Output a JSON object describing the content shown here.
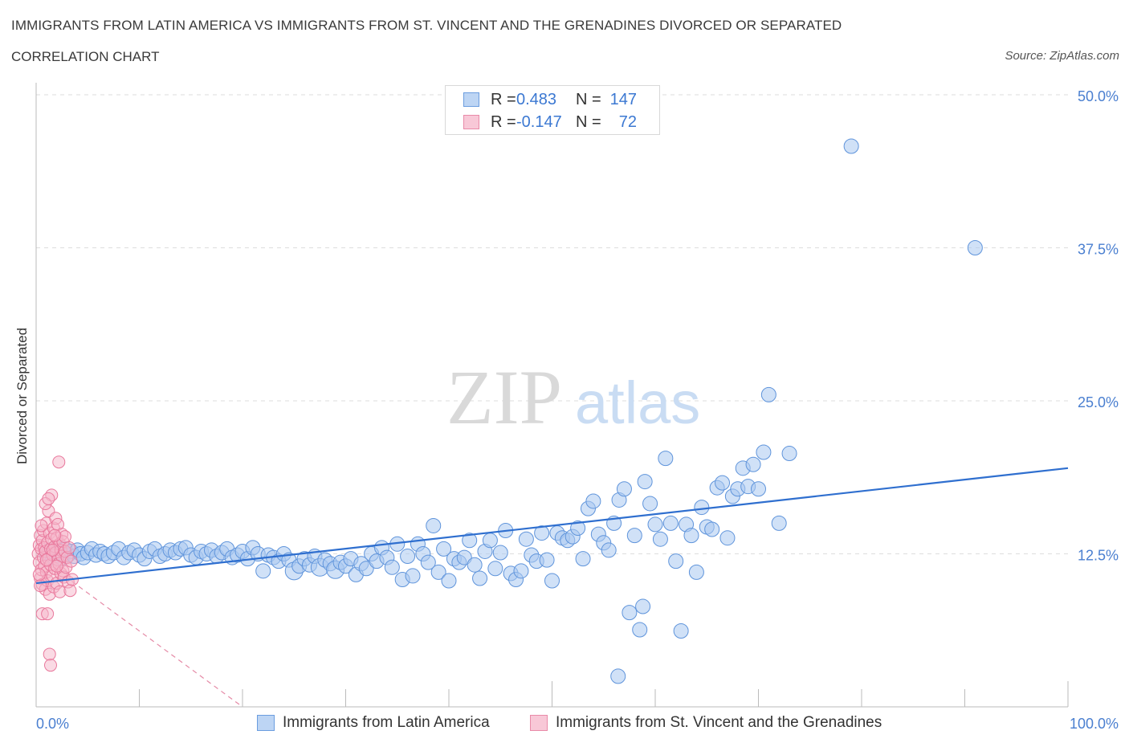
{
  "header": {
    "title": "IMMIGRANTS FROM LATIN AMERICA VS IMMIGRANTS FROM ST. VINCENT AND THE GRENADINES DIVORCED OR SEPARATED",
    "subtitle": "CORRELATION CHART",
    "source": "Source: ZipAtlas.com"
  },
  "watermark": {
    "zip": "ZIP",
    "atlas": "atlas"
  },
  "legend_top": {
    "rows": [
      {
        "r_label": "R =",
        "r_value": "0.483",
        "n_label": "N =",
        "n_value": "147"
      },
      {
        "r_label": "R =",
        "r_value": "-0.147",
        "n_label": "N =",
        "n_value": "72"
      }
    ]
  },
  "legend_bottom": {
    "items": [
      {
        "label": "Immigrants from Latin America"
      },
      {
        "label": "Immigrants from St. Vincent and the Grenadines"
      }
    ]
  },
  "colors": {
    "blue_fill": "#a9c8f0",
    "blue_stroke": "#5f94db",
    "blue_line": "#2f6fcf",
    "pink_fill": "#f6b6c9",
    "pink_stroke": "#e9789c",
    "pink_line": "#e58aa6",
    "grid": "#dddddd",
    "tick_text": "#4a7fd0"
  },
  "chart_data": {
    "type": "scatter",
    "ylabel": "Divorced or Separated",
    "xlabel": "",
    "xlim": [
      0,
      100
    ],
    "ylim": [
      0,
      50
    ],
    "x_tick_labels": [
      "0.0%",
      "100.0%"
    ],
    "y_tick_labels": [
      "12.5%",
      "25.0%",
      "37.5%",
      "50.0%"
    ],
    "y_ticks": [
      12.5,
      25,
      37.5,
      50
    ],
    "grid": true,
    "legend_position": "top-center",
    "series": [
      {
        "name": "Immigrants from Latin America",
        "color": "blue",
        "trend": {
          "x": [
            0,
            100
          ],
          "y": [
            10.1,
            19.5
          ]
        },
        "points": [
          [
            1.0,
            12.5
          ],
          [
            1.3,
            12.8
          ],
          [
            1.6,
            12.2
          ],
          [
            1.9,
            13.0
          ],
          [
            2.2,
            12.6
          ],
          [
            2.5,
            12.1
          ],
          [
            2.8,
            12.9
          ],
          [
            3.1,
            12.4
          ],
          [
            3.4,
            12.7
          ],
          [
            3.7,
            12.3
          ],
          [
            4.0,
            12.8
          ],
          [
            4.3,
            12.5
          ],
          [
            4.6,
            12.2
          ],
          [
            5.0,
            12.6
          ],
          [
            5.4,
            12.9
          ],
          [
            5.8,
            12.4
          ],
          [
            6.2,
            12.7
          ],
          [
            6.6,
            12.5
          ],
          [
            7.0,
            12.3
          ],
          [
            7.5,
            12.6
          ],
          [
            8.0,
            12.9
          ],
          [
            8.5,
            12.2
          ],
          [
            9.0,
            12.6
          ],
          [
            9.5,
            12.8
          ],
          [
            10.0,
            12.4
          ],
          [
            10.5,
            12.1
          ],
          [
            11.0,
            12.7
          ],
          [
            11.5,
            12.9
          ],
          [
            12.0,
            12.3
          ],
          [
            12.5,
            12.5
          ],
          [
            13.0,
            12.8
          ],
          [
            13.5,
            12.6
          ],
          [
            14.0,
            12.9
          ],
          [
            14.5,
            13.0
          ],
          [
            15.0,
            12.4
          ],
          [
            15.5,
            12.2
          ],
          [
            16.0,
            12.7
          ],
          [
            16.5,
            12.5
          ],
          [
            17.0,
            12.8
          ],
          [
            17.5,
            12.3
          ],
          [
            18.0,
            12.6
          ],
          [
            18.5,
            12.9
          ],
          [
            19.0,
            12.2
          ],
          [
            19.5,
            12.4
          ],
          [
            20.0,
            12.7
          ],
          [
            20.5,
            12.1
          ],
          [
            21.0,
            13.0
          ],
          [
            21.5,
            12.5
          ],
          [
            22.0,
            11.1
          ],
          [
            22.5,
            12.4
          ],
          [
            23.0,
            12.2
          ],
          [
            23.5,
            11.9
          ],
          [
            24.0,
            12.5
          ],
          [
            24.5,
            12.0
          ],
          [
            25.0,
            11.1
          ],
          [
            25.5,
            11.5
          ],
          [
            26.0,
            12.1
          ],
          [
            26.5,
            11.6
          ],
          [
            27.0,
            12.3
          ],
          [
            27.5,
            11.4
          ],
          [
            28.0,
            12.0
          ],
          [
            28.5,
            11.7
          ],
          [
            29.0,
            11.2
          ],
          [
            29.5,
            11.8
          ],
          [
            30.0,
            11.5
          ],
          [
            30.5,
            12.1
          ],
          [
            31.0,
            10.8
          ],
          [
            31.5,
            11.7
          ],
          [
            32.0,
            11.3
          ],
          [
            32.5,
            12.5
          ],
          [
            33.0,
            11.9
          ],
          [
            33.5,
            13.0
          ],
          [
            34.0,
            12.2
          ],
          [
            34.5,
            11.4
          ],
          [
            35.0,
            13.3
          ],
          [
            35.5,
            10.4
          ],
          [
            36.0,
            12.3
          ],
          [
            36.5,
            10.7
          ],
          [
            37.0,
            13.3
          ],
          [
            37.5,
            12.5
          ],
          [
            38.0,
            11.8
          ],
          [
            38.5,
            14.8
          ],
          [
            39.0,
            11.0
          ],
          [
            39.5,
            12.9
          ],
          [
            40.0,
            10.3
          ],
          [
            40.5,
            12.1
          ],
          [
            41.0,
            11.8
          ],
          [
            41.5,
            12.2
          ],
          [
            42.0,
            13.6
          ],
          [
            42.5,
            11.6
          ],
          [
            43.0,
            10.5
          ],
          [
            43.5,
            12.7
          ],
          [
            44.0,
            13.6
          ],
          [
            44.5,
            11.3
          ],
          [
            45.0,
            12.6
          ],
          [
            45.5,
            14.4
          ],
          [
            46.0,
            10.9
          ],
          [
            46.5,
            10.4
          ],
          [
            47.0,
            11.1
          ],
          [
            47.5,
            13.7
          ],
          [
            48.0,
            12.4
          ],
          [
            48.5,
            11.9
          ],
          [
            49.0,
            14.2
          ],
          [
            49.5,
            12.0
          ],
          [
            50.0,
            10.3
          ],
          [
            50.5,
            14.2
          ],
          [
            51.0,
            13.8
          ],
          [
            51.5,
            13.6
          ],
          [
            52.0,
            13.9
          ],
          [
            52.5,
            14.6
          ],
          [
            53.0,
            12.1
          ],
          [
            53.5,
            16.2
          ],
          [
            54.0,
            16.8
          ],
          [
            54.5,
            14.1
          ],
          [
            55.0,
            13.4
          ],
          [
            55.5,
            12.8
          ],
          [
            56.0,
            15.0
          ],
          [
            56.5,
            16.9
          ],
          [
            57.0,
            17.8
          ],
          [
            57.5,
            7.7
          ],
          [
            58.0,
            14.0
          ],
          [
            58.5,
            6.3
          ],
          [
            58.8,
            8.2
          ],
          [
            59.0,
            18.4
          ],
          [
            59.5,
            16.6
          ],
          [
            60.0,
            14.9
          ],
          [
            60.5,
            13.7
          ],
          [
            61.0,
            20.3
          ],
          [
            61.5,
            15.0
          ],
          [
            62.0,
            11.9
          ],
          [
            62.5,
            6.2
          ],
          [
            63.0,
            14.9
          ],
          [
            63.5,
            14.0
          ],
          [
            64.0,
            11.0
          ],
          [
            64.5,
            16.3
          ],
          [
            65.0,
            14.7
          ],
          [
            65.5,
            14.5
          ],
          [
            66.0,
            17.9
          ],
          [
            66.5,
            18.3
          ],
          [
            67.0,
            13.8
          ],
          [
            67.5,
            17.2
          ],
          [
            68.0,
            17.8
          ],
          [
            68.5,
            19.5
          ],
          [
            69.0,
            18.0
          ],
          [
            69.5,
            19.8
          ],
          [
            70.0,
            17.8
          ],
          [
            70.5,
            20.8
          ],
          [
            71.0,
            25.5
          ],
          [
            72.0,
            15.0
          ],
          [
            73.0,
            20.7
          ],
          [
            79.0,
            45.8
          ],
          [
            91.0,
            37.5
          ],
          [
            56.4,
            2.5
          ]
        ]
      },
      {
        "name": "Immigrants from St. Vincent and the Grenadines",
        "color": "pink",
        "trend": {
          "x": [
            0,
            20
          ],
          "y": [
            12.4,
            0
          ]
        },
        "points": [
          [
            0.2,
            12.5
          ],
          [
            0.3,
            13.2
          ],
          [
            0.3,
            11.8
          ],
          [
            0.4,
            14.0
          ],
          [
            0.4,
            10.5
          ],
          [
            0.5,
            12.9
          ],
          [
            0.5,
            11.2
          ],
          [
            0.6,
            13.6
          ],
          [
            0.6,
            10.0
          ],
          [
            0.7,
            12.2
          ],
          [
            0.7,
            14.4
          ],
          [
            0.8,
            11.5
          ],
          [
            0.8,
            13.0
          ],
          [
            0.9,
            9.6
          ],
          [
            0.9,
            12.7
          ],
          [
            1.0,
            15.0
          ],
          [
            1.0,
            11.0
          ],
          [
            1.1,
            13.4
          ],
          [
            1.1,
            10.3
          ],
          [
            1.2,
            12.1
          ],
          [
            1.2,
            16.0
          ],
          [
            1.3,
            14.2
          ],
          [
            1.3,
            9.2
          ],
          [
            1.4,
            12.9
          ],
          [
            1.4,
            11.6
          ],
          [
            1.5,
            13.7
          ],
          [
            1.5,
            17.3
          ],
          [
            1.6,
            10.7
          ],
          [
            1.6,
            12.4
          ],
          [
            1.7,
            14.6
          ],
          [
            1.7,
            9.8
          ],
          [
            1.8,
            13.1
          ],
          [
            1.8,
            11.3
          ],
          [
            1.9,
            12.6
          ],
          [
            1.9,
            15.4
          ],
          [
            2.0,
            10.1
          ],
          [
            2.0,
            13.8
          ],
          [
            2.1,
            12.0
          ],
          [
            2.1,
            14.9
          ],
          [
            2.2,
            11.7
          ],
          [
            2.2,
            20.0
          ],
          [
            2.3,
            13.3
          ],
          [
            2.3,
            9.4
          ],
          [
            2.4,
            12.8
          ],
          [
            2.4,
            10.9
          ],
          [
            2.5,
            14.1
          ],
          [
            2.5,
            12.3
          ],
          [
            2.6,
            11.1
          ],
          [
            2.6,
            13.5
          ],
          [
            2.7,
            10.6
          ],
          [
            2.8,
            12.7
          ],
          [
            2.8,
            13.9
          ],
          [
            2.9,
            11.4
          ],
          [
            3.0,
            12.2
          ],
          [
            3.1,
            10.2
          ],
          [
            3.2,
            13.0
          ],
          [
            3.3,
            9.5
          ],
          [
            3.4,
            11.9
          ],
          [
            3.5,
            10.4
          ],
          [
            0.6,
            7.6
          ],
          [
            1.1,
            7.6
          ],
          [
            1.3,
            4.3
          ],
          [
            1.4,
            3.4
          ],
          [
            0.9,
            16.6
          ],
          [
            1.2,
            17.0
          ],
          [
            0.5,
            14.8
          ],
          [
            0.4,
            9.9
          ],
          [
            1.0,
            12.0
          ],
          [
            1.6,
            12.8
          ],
          [
            2.0,
            11.5
          ],
          [
            0.3,
            10.8
          ],
          [
            1.8,
            14.0
          ]
        ]
      }
    ]
  }
}
